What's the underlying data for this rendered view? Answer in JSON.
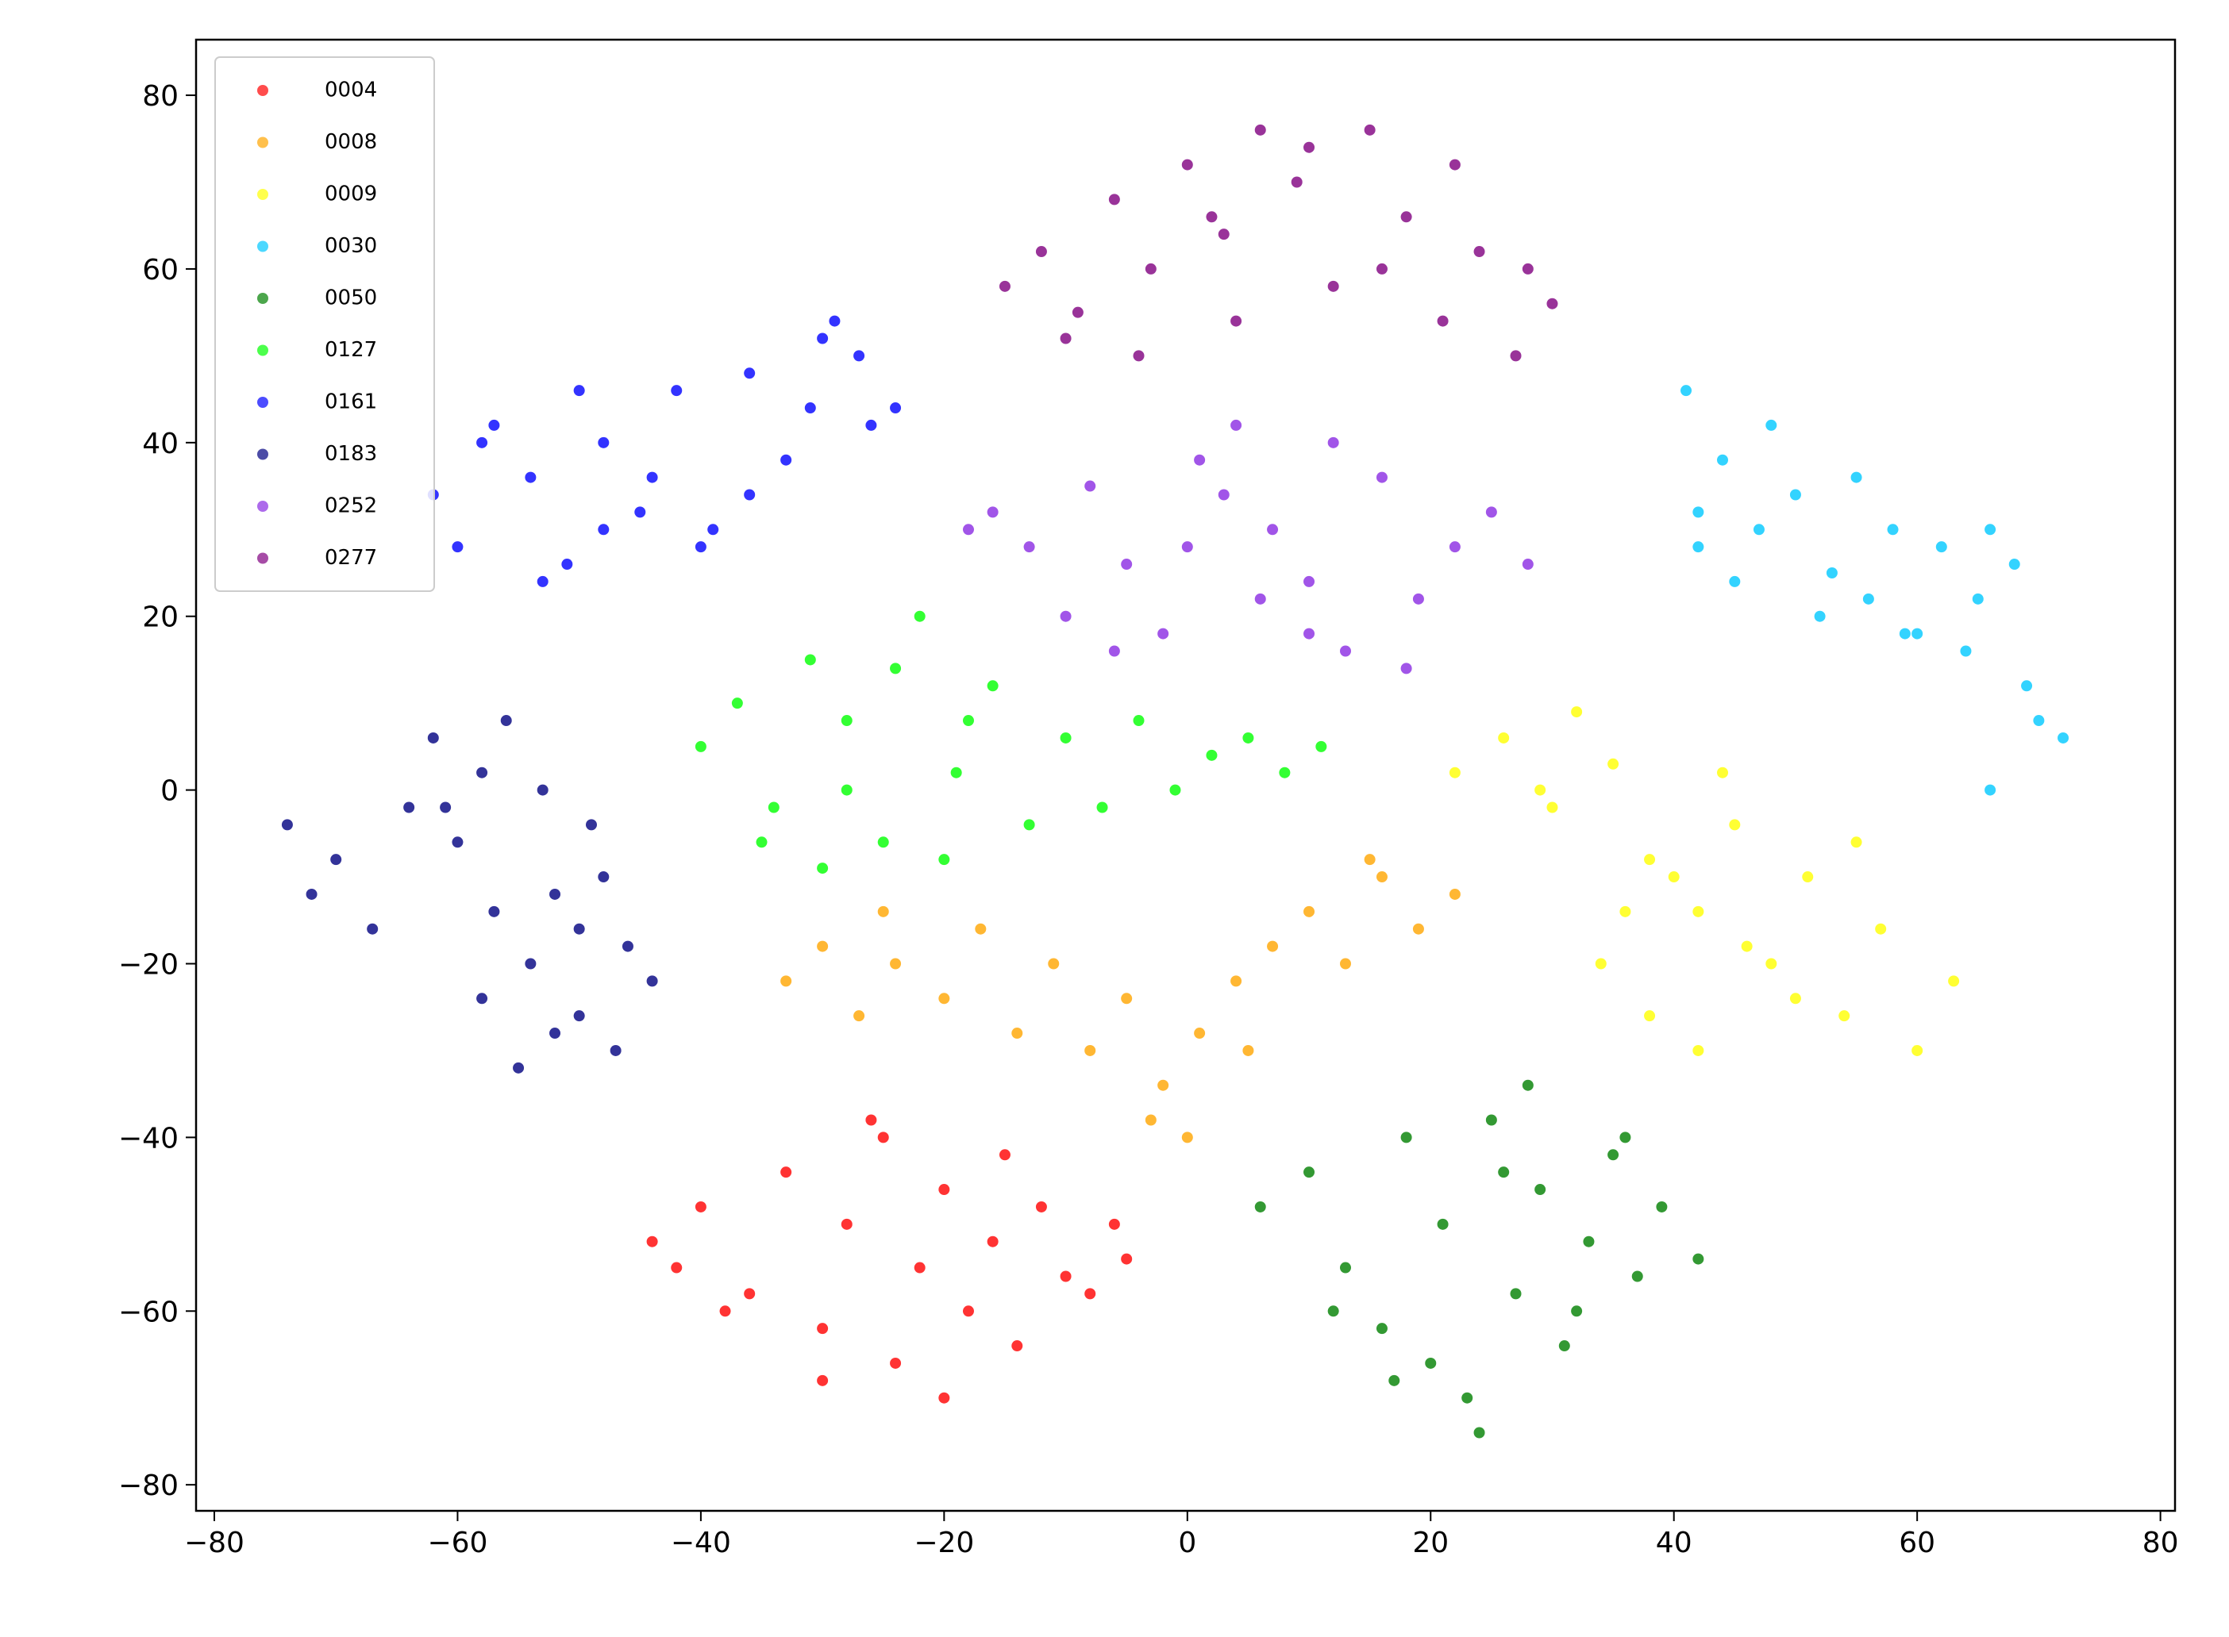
{
  "chart_data": {
    "type": "scatter",
    "xlim": [
      -81.5,
      81.2
    ],
    "ylim": [
      -83,
      86.4
    ],
    "xticks": [
      {
        "value": -80,
        "label": "−80"
      },
      {
        "value": -60,
        "label": "−60"
      },
      {
        "value": -40,
        "label": "−40"
      },
      {
        "value": -20,
        "label": "−20"
      },
      0,
      20,
      40,
      60,
      80
    ],
    "yticks": [
      {
        "value": -80,
        "label": "−80"
      },
      {
        "value": -60,
        "label": "−60"
      },
      {
        "value": -40,
        "label": "−40"
      },
      {
        "value": -20,
        "label": "−20"
      },
      0,
      20,
      40,
      60,
      80
    ],
    "legend": "upper left",
    "series": [
      {
        "name": "0004",
        "color": "#ff0000",
        "x": [
          -44,
          -40,
          -36,
          -33,
          -30,
          -28,
          -25,
          -24,
          -22,
          -20,
          -18,
          -16,
          -14,
          -12,
          -10,
          -8,
          -6,
          -5,
          -38,
          -30,
          -26,
          -20,
          -15,
          -42
        ],
        "values": [
          -52,
          -48,
          -58,
          -44,
          -62,
          -50,
          -40,
          -66,
          -55,
          -46,
          -60,
          -52,
          -64,
          -48,
          -56,
          -58,
          -50,
          -54,
          -60,
          -68,
          -38,
          -70,
          -42,
          -55
        ]
      },
      {
        "name": "0008",
        "color": "#ffa500",
        "x": [
          -33,
          -30,
          -27,
          -24,
          -20,
          -17,
          -14,
          -11,
          -8,
          -5,
          -2,
          1,
          4,
          7,
          10,
          13,
          16,
          19,
          22,
          -3,
          0,
          5,
          -25,
          15
        ],
        "values": [
          -22,
          -18,
          -26,
          -20,
          -24,
          -16,
          -28,
          -20,
          -30,
          -24,
          -34,
          -28,
          -22,
          -18,
          -14,
          -20,
          -10,
          -16,
          -12,
          -38,
          -40,
          -30,
          -14,
          -8
        ]
      },
      {
        "name": "0009",
        "color": "#ffff00",
        "x": [
          22,
          26,
          29,
          32,
          35,
          38,
          42,
          45,
          48,
          51,
          54,
          57,
          60,
          63,
          34,
          38,
          42,
          46,
          50,
          40,
          55,
          30,
          44,
          36
        ],
        "values": [
          2,
          6,
          0,
          9,
          3,
          -8,
          -14,
          -4,
          -20,
          -10,
          -26,
          -16,
          -30,
          -22,
          -20,
          -26,
          -30,
          -18,
          -24,
          -10,
          -6,
          -2,
          2,
          -14
        ]
      },
      {
        "name": "0030",
        "color": "#00c8ff",
        "x": [
          41,
          44,
          47,
          50,
          53,
          56,
          59,
          62,
          65,
          68,
          45,
          42,
          48,
          55,
          60,
          66,
          70,
          72,
          69,
          66,
          42,
          52,
          58,
          64
        ],
        "values": [
          46,
          38,
          30,
          34,
          25,
          22,
          18,
          28,
          22,
          26,
          24,
          32,
          42,
          36,
          18,
          30,
          8,
          6,
          12,
          0,
          28,
          20,
          30,
          16
        ]
      },
      {
        "name": "0050",
        "color": "#008000",
        "x": [
          6,
          10,
          13,
          16,
          18,
          21,
          23,
          25,
          27,
          29,
          31,
          33,
          35,
          37,
          39,
          42,
          20,
          24,
          28,
          32,
          12,
          17,
          26,
          36
        ],
        "values": [
          -48,
          -44,
          -55,
          -62,
          -40,
          -50,
          -70,
          -38,
          -58,
          -46,
          -64,
          -52,
          -42,
          -56,
          -48,
          -54,
          -66,
          -74,
          -34,
          -60,
          -60,
          -68,
          -44,
          -40
        ]
      },
      {
        "name": "0127",
        "color": "#00ff00",
        "x": [
          -40,
          -37,
          -34,
          -31,
          -28,
          -25,
          -22,
          -19,
          -16,
          -13,
          -10,
          -7,
          -4,
          -1,
          2,
          5,
          8,
          11,
          -35,
          -30,
          -24,
          -18,
          -28,
          -20
        ],
        "values": [
          5,
          10,
          -2,
          15,
          8,
          -6,
          20,
          2,
          12,
          -4,
          6,
          -2,
          8,
          0,
          4,
          6,
          2,
          5,
          -6,
          -9,
          14,
          8,
          0,
          -8
        ]
      },
      {
        "name": "0161",
        "color": "#0000ff",
        "x": [
          -62,
          -60,
          -57,
          -54,
          -51,
          -48,
          -45,
          -42,
          -39,
          -36,
          -33,
          -30,
          -27,
          -24,
          -58,
          -53,
          -48,
          -44,
          -40,
          -36,
          -31,
          -29,
          -26,
          -50
        ],
        "values": [
          34,
          28,
          42,
          36,
          26,
          40,
          32,
          46,
          30,
          48,
          38,
          52,
          50,
          44,
          40,
          24,
          30,
          36,
          28,
          34,
          44,
          54,
          42,
          46
        ]
      },
      {
        "name": "0183",
        "color": "#000080",
        "x": [
          -74,
          -72,
          -70,
          -67,
          -64,
          -62,
          -60,
          -58,
          -56,
          -54,
          -52,
          -50,
          -48,
          -46,
          -44,
          -55,
          -52,
          -49,
          -57,
          -53,
          -61,
          -47,
          -58,
          -50
        ],
        "values": [
          -4,
          -12,
          -8,
          -16,
          -2,
          6,
          -6,
          2,
          8,
          -20,
          -12,
          -26,
          -10,
          -18,
          -22,
          -32,
          -28,
          -4,
          -14,
          0,
          -2,
          -30,
          -24,
          -16
        ]
      },
      {
        "name": "0252",
        "color": "#8a2be2",
        "x": [
          -18,
          -16,
          -13,
          -10,
          -8,
          -5,
          -2,
          1,
          4,
          7,
          10,
          13,
          16,
          19,
          22,
          25,
          28,
          -6,
          0,
          6,
          12,
          18,
          3,
          10
        ],
        "values": [
          30,
          32,
          28,
          20,
          35,
          26,
          18,
          38,
          42,
          30,
          24,
          16,
          36,
          22,
          28,
          32,
          26,
          16,
          28,
          22,
          40,
          14,
          34,
          18
        ]
      },
      {
        "name": "0277",
        "color": "#800080",
        "x": [
          -15,
          -12,
          -9,
          -6,
          -3,
          0,
          3,
          6,
          9,
          12,
          15,
          18,
          21,
          24,
          27,
          30,
          -10,
          -4,
          4,
          10,
          16,
          22,
          28,
          2
        ],
        "values": [
          58,
          62,
          55,
          68,
          60,
          72,
          64,
          76,
          70,
          58,
          76,
          66,
          54,
          62,
          50,
          56,
          52,
          50,
          54,
          74,
          60,
          72,
          60,
          66
        ]
      }
    ]
  }
}
